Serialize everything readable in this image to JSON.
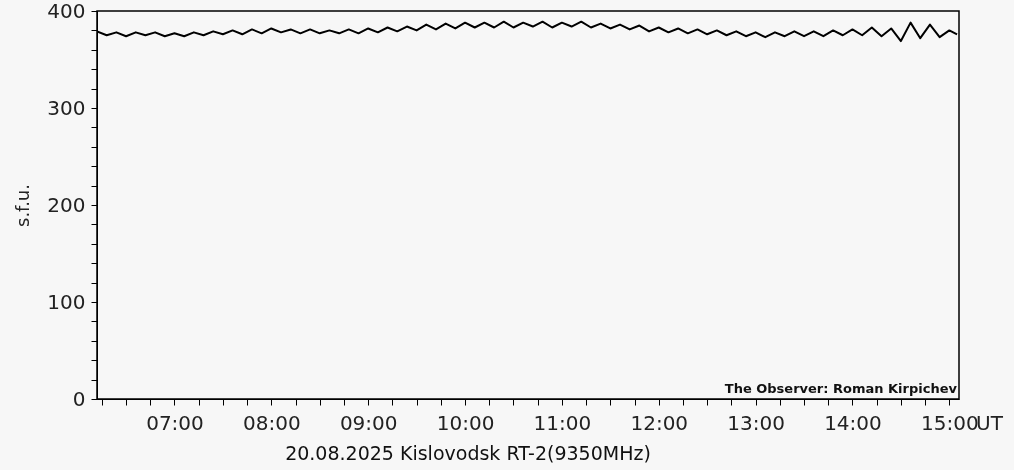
{
  "chart_data": {
    "type": "line",
    "xlabel": "UT",
    "ylabel": "s.f.u.",
    "annotations": [
      "20.08.2025 Kislovodsk RT-2(9350MHz)",
      "The Observer: Roman Kirpichev"
    ],
    "x": [
      6.2,
      6.3,
      6.4,
      6.5,
      6.6,
      6.7,
      6.8,
      6.9,
      7.0,
      7.1,
      7.2,
      7.3,
      7.4,
      7.5,
      7.6,
      7.7,
      7.8,
      7.9,
      8.0,
      8.1,
      8.2,
      8.3,
      8.4,
      8.5,
      8.6,
      8.7,
      8.8,
      8.9,
      9.0,
      9.1,
      9.2,
      9.3,
      9.4,
      9.5,
      9.6,
      9.7,
      9.8,
      9.9,
      10.0,
      10.1,
      10.2,
      10.3,
      10.4,
      10.5,
      10.6,
      10.7,
      10.8,
      10.9,
      11.0,
      11.1,
      11.2,
      11.3,
      11.4,
      11.5,
      11.6,
      11.7,
      11.8,
      11.9,
      12.0,
      12.1,
      12.2,
      12.3,
      12.4,
      12.5,
      12.6,
      12.7,
      12.8,
      12.9,
      13.0,
      13.1,
      13.2,
      13.3,
      13.4,
      13.5,
      13.6,
      13.7,
      13.8,
      13.9,
      14.0,
      14.1,
      14.2,
      14.3,
      14.4,
      14.5,
      14.6,
      14.7,
      14.8,
      14.9,
      15.0,
      15.08
    ],
    "series": [
      {
        "color": "#000000",
        "values": [
          379,
          375,
          378,
          374,
          378,
          375,
          378,
          374,
          377,
          374,
          378,
          375,
          379,
          376,
          380,
          376,
          381,
          377,
          382,
          378,
          381,
          377,
          381,
          377,
          380,
          377,
          381,
          377,
          382,
          378,
          383,
          379,
          384,
          380,
          386,
          381,
          387,
          382,
          388,
          383,
          388,
          383,
          389,
          383,
          388,
          384,
          389,
          383,
          388,
          384,
          389,
          383,
          387,
          382,
          386,
          381,
          385,
          379,
          383,
          378,
          382,
          377,
          381,
          376,
          380,
          375,
          379,
          374,
          378,
          373,
          378,
          374,
          379,
          374,
          379,
          374,
          380,
          375,
          381,
          375,
          383,
          374,
          382,
          369,
          388,
          372,
          386,
          373,
          380,
          376
        ]
      }
    ],
    "xlim": [
      6.2,
      15.1
    ],
    "ylim": [
      0,
      400
    ],
    "xticks": [
      {
        "value": 6.25,
        "label": null
      },
      {
        "value": 6.5,
        "label": null
      },
      {
        "value": 6.75,
        "label": null
      },
      {
        "value": 7,
        "label": "07:00"
      },
      {
        "value": 7.25,
        "label": null
      },
      {
        "value": 7.5,
        "label": null
      },
      {
        "value": 7.75,
        "label": null
      },
      {
        "value": 8,
        "label": "08:00"
      },
      {
        "value": 8.25,
        "label": null
      },
      {
        "value": 8.5,
        "label": null
      },
      {
        "value": 8.75,
        "label": null
      },
      {
        "value": 9,
        "label": "09:00"
      },
      {
        "value": 9.25,
        "label": null
      },
      {
        "value": 9.5,
        "label": null
      },
      {
        "value": 9.75,
        "label": null
      },
      {
        "value": 10,
        "label": "10:00"
      },
      {
        "value": 10.25,
        "label": null
      },
      {
        "value": 10.5,
        "label": null
      },
      {
        "value": 10.75,
        "label": null
      },
      {
        "value": 11,
        "label": "11:00"
      },
      {
        "value": 11.25,
        "label": null
      },
      {
        "value": 11.5,
        "label": null
      },
      {
        "value": 11.75,
        "label": null
      },
      {
        "value": 12,
        "label": "12:00"
      },
      {
        "value": 12.25,
        "label": null
      },
      {
        "value": 12.5,
        "label": null
      },
      {
        "value": 12.75,
        "label": null
      },
      {
        "value": 13,
        "label": "13:00"
      },
      {
        "value": 13.25,
        "label": null
      },
      {
        "value": 13.5,
        "label": null
      },
      {
        "value": 13.75,
        "label": null
      },
      {
        "value": 14,
        "label": "14:00"
      },
      {
        "value": 14.25,
        "label": null
      },
      {
        "value": 14.5,
        "label": null
      },
      {
        "value": 14.75,
        "label": null
      },
      {
        "value": 15,
        "label": "15:00"
      }
    ],
    "yticks": [
      0,
      {
        "value": 20,
        "label": null
      },
      {
        "value": 40,
        "label": null
      },
      {
        "value": 60,
        "label": null
      },
      {
        "value": 80,
        "label": null
      },
      100,
      {
        "value": 120,
        "label": null
      },
      {
        "value": 140,
        "label": null
      },
      {
        "value": 160,
        "label": null
      },
      {
        "value": 180,
        "label": null
      },
      200,
      {
        "value": 220,
        "label": null
      },
      {
        "value": 240,
        "label": null
      },
      {
        "value": 260,
        "label": null
      },
      {
        "value": 280,
        "label": null
      },
      300,
      {
        "value": 320,
        "label": null
      },
      {
        "value": 340,
        "label": null
      },
      {
        "value": 360,
        "label": null
      },
      {
        "value": 380,
        "label": null
      },
      400
    ],
    "grid": false,
    "marker": "none",
    "line_style": "solid"
  }
}
